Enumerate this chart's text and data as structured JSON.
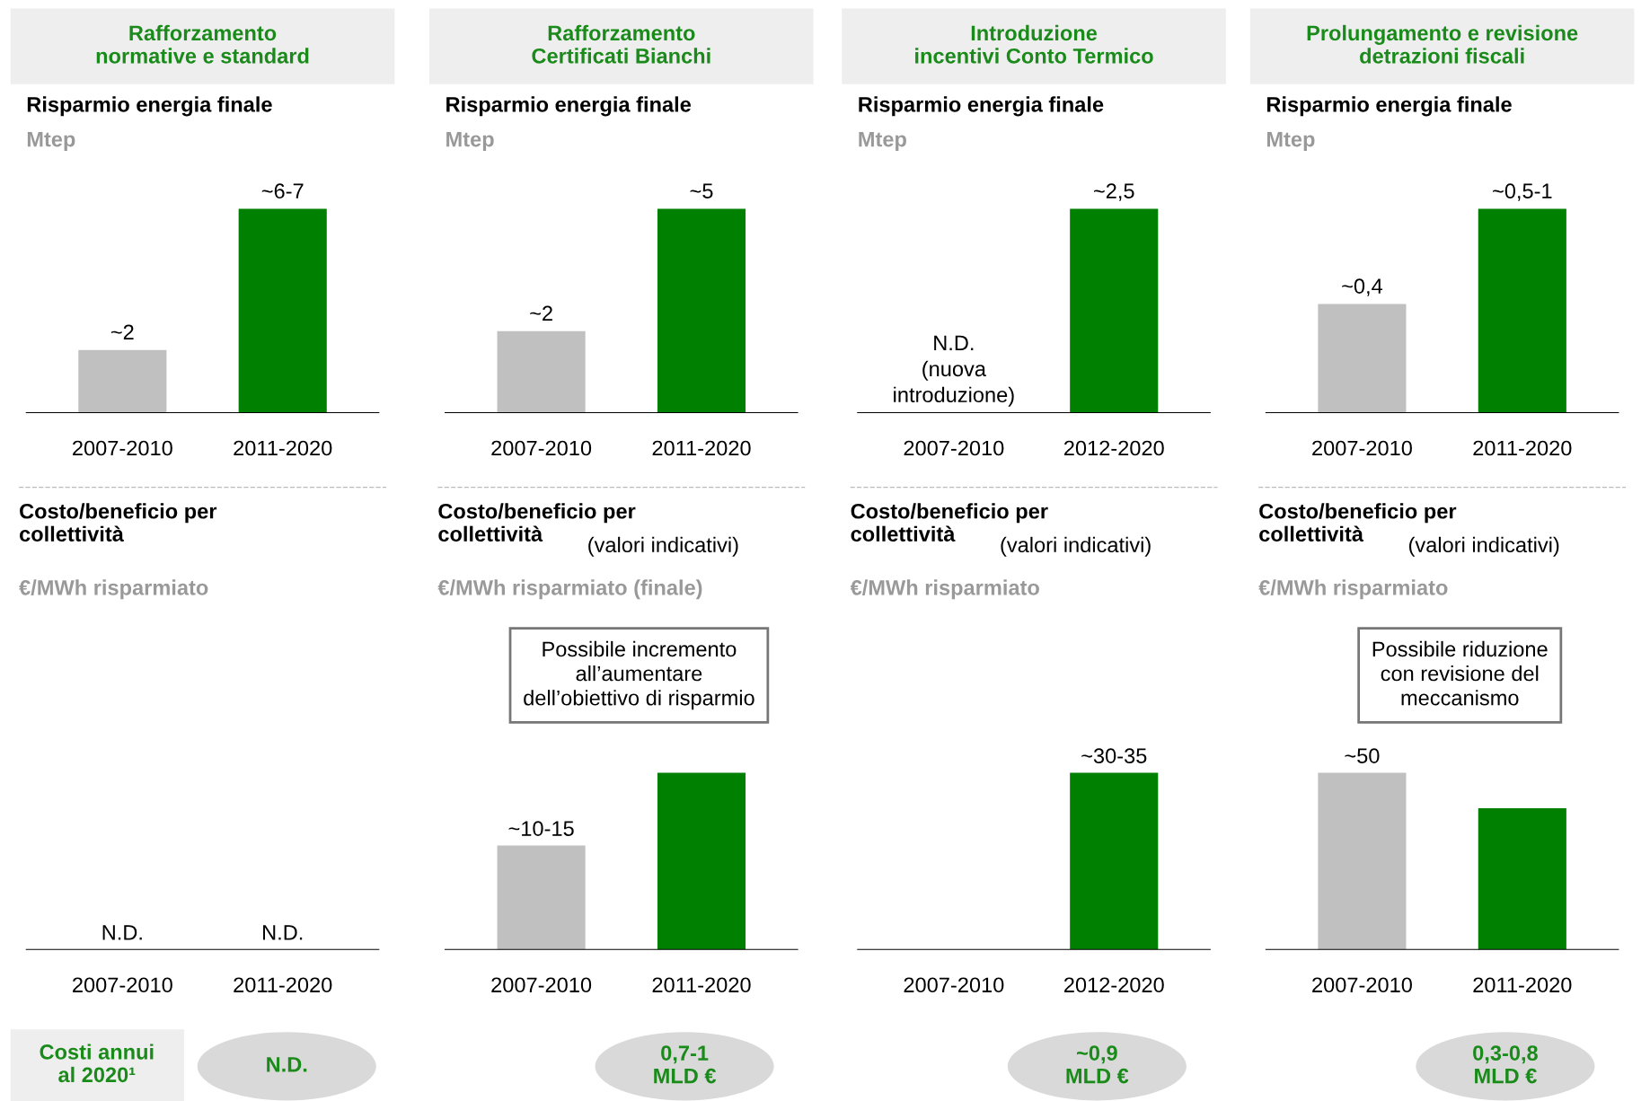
{
  "chart_data": [
    {
      "type": "bar",
      "title": "Rafforzamento\nnormative e standard",
      "subtitle": "Risparmio energia finale",
      "ylabel": "Mtep",
      "categories": [
        "2007-2010",
        "2011-2020"
      ],
      "values": [
        2,
        6.5
      ],
      "colors": [
        "#c0c0c0",
        "#008000"
      ],
      "value_labels": [
        "~2",
        "~6-7"
      ],
      "grid": false,
      "legend": false
    },
    {
      "type": "bar",
      "title": "Rafforzamento\nCertificati Bianchi",
      "subtitle": "Risparmio energia finale",
      "ylabel": "Mtep",
      "categories": [
        "2007-2010",
        "2011-2020"
      ],
      "values": [
        2,
        5
      ],
      "colors": [
        "#c0c0c0",
        "#008000"
      ],
      "value_labels": [
        "~2",
        "~5"
      ],
      "grid": false,
      "legend": false
    },
    {
      "type": "bar",
      "title": "Introduzione\nincentivi Conto Termico",
      "subtitle": "Risparmio energia finale",
      "ylabel": "Mtep",
      "categories": [
        "2007-2010",
        "2012-2020"
      ],
      "values": [
        null,
        2.5
      ],
      "colors": [
        "#c0c0c0",
        "#008000"
      ],
      "value_labels": [
        "N.D.\n(nuova\nintroduzione)",
        "~2,5"
      ],
      "grid": false,
      "legend": false
    },
    {
      "type": "bar",
      "title": "Prolungamento e revisione\ndetrazioni fiscali",
      "subtitle": "Risparmio energia finale",
      "ylabel": "Mtep",
      "categories": [
        "2007-2010",
        "2011-2020"
      ],
      "values": [
        0.4,
        0.75
      ],
      "colors": [
        "#c0c0c0",
        "#008000"
      ],
      "value_labels": [
        "~0,4",
        "~0,5-1"
      ],
      "grid": false,
      "legend": false
    },
    {
      "type": "other",
      "title": "Costo/beneficio per\ncollettività",
      "ylabel": "€/MWh risparmiato",
      "categories": [
        "2007-2010",
        "2011-2020"
      ],
      "value_labels": [
        "N.D.",
        "N.D."
      ],
      "annotations": [
        "Costi annui\nal 2020¹",
        "N.D."
      ]
    },
    {
      "type": "bar",
      "title": "Costo/beneficio per\ncollettività",
      "subtitle": "(valori indicativi)",
      "ylabel": "€/MWh risparmiato (finale)",
      "categories": [
        "2007-2010",
        "2011-2020"
      ],
      "values": [
        10,
        17
      ],
      "colors": [
        "#c0c0c0",
        "#008000"
      ],
      "value_labels": [
        "~10-15",
        null
      ],
      "annotations": [
        "Possibile incremento\nall’aumentare\ndell’obiettivo di risparmio",
        "0,7-1\nMLD €"
      ],
      "grid": false,
      "legend": false
    },
    {
      "type": "bar",
      "title": "Costo/beneficio per\ncollettività",
      "subtitle": "(valori indicativi)",
      "ylabel": "€/MWh risparmiato",
      "categories": [
        "2007-2010",
        "2012-2020"
      ],
      "values": [
        null,
        30
      ],
      "colors": [
        "#c0c0c0",
        "#008000"
      ],
      "value_labels": [
        null,
        "~30-35"
      ],
      "annotations": [
        "~0,9\nMLD €"
      ],
      "grid": false,
      "legend": false
    },
    {
      "type": "bar",
      "title": "Costo/beneficio per\ncollettività",
      "subtitle": "(valori indicativi)",
      "ylabel": "€/MWh risparmiato",
      "categories": [
        "2007-2010",
        "2011-2020"
      ],
      "values": [
        50,
        40
      ],
      "colors": [
        "#c0c0c0",
        "#008000"
      ],
      "value_labels": [
        "~50",
        null
      ],
      "annotations": [
        "Possibile riduzione\ncon revisione del\nmeccanismo",
        "0,3-0,8\nMLD €"
      ],
      "grid": false,
      "legend": false
    }
  ]
}
